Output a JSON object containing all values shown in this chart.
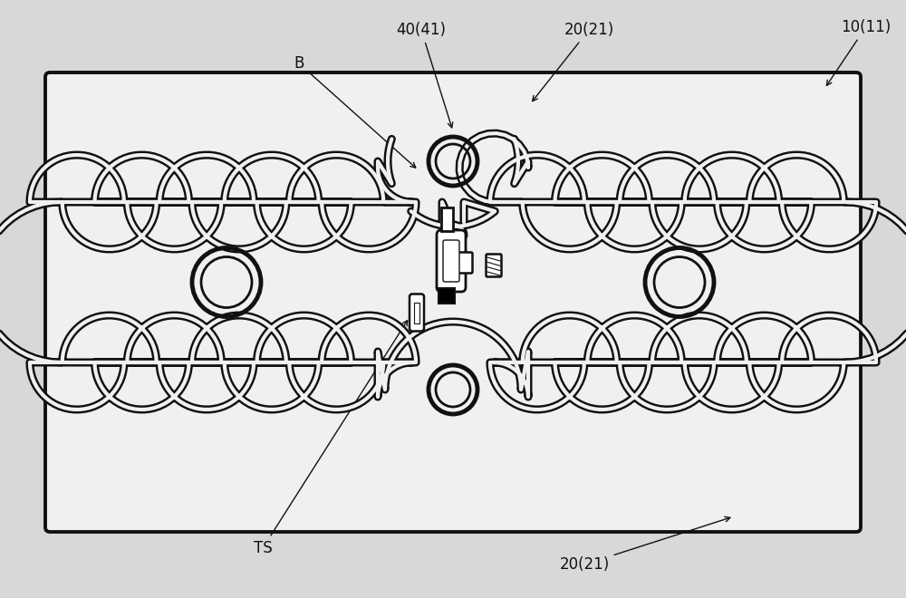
{
  "bg_color": "#d8d8d8",
  "pad_bg": "#f0f0f0",
  "line_color": "#111111",
  "fig_width": 10.0,
  "fig_height": 6.6,
  "labels": {
    "top_right": "10(11)",
    "mid_top_right": "20(21)",
    "mid_top_center": "40(41)",
    "left_top": "B",
    "bottom_center": "20(21)",
    "bottom_left": "TS"
  }
}
